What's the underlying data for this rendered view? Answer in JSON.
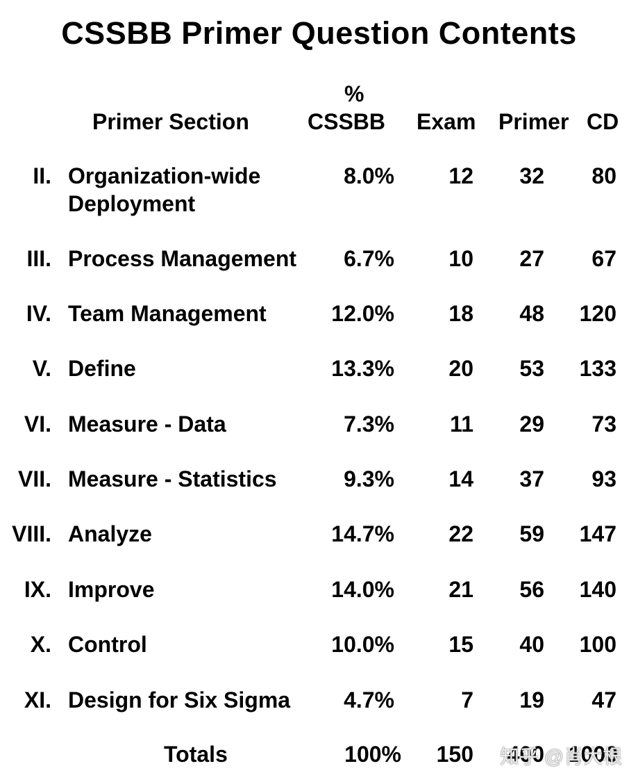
{
  "title": "CSSBB Primer Question Contents",
  "headers": {
    "section": "Primer Section",
    "pct_symbol": "%",
    "pct": "CSSBB",
    "exam": "Exam",
    "primer": "Primer",
    "cd": "CD"
  },
  "rows": [
    {
      "num": "II.",
      "label": "Organization-wide",
      "label2": "Deployment",
      "pct": "8.0%",
      "exam": "12",
      "primer": "32",
      "cd": "80"
    },
    {
      "num": "III.",
      "label": "Process Management",
      "pct": "6.7%",
      "exam": "10",
      "primer": "27",
      "cd": "67"
    },
    {
      "num": "IV.",
      "label": "Team Management",
      "pct": "12.0%",
      "exam": "18",
      "primer": "48",
      "cd": "120"
    },
    {
      "num": "V.",
      "label": "Define",
      "pct": "13.3%",
      "exam": "20",
      "primer": "53",
      "cd": "133"
    },
    {
      "num": "VI.",
      "label": "Measure - Data",
      "pct": "7.3%",
      "exam": "11",
      "primer": "29",
      "cd": "73"
    },
    {
      "num": "VII.",
      "label": "Measure - Statistics",
      "pct": "9.3%",
      "exam": "14",
      "primer": "37",
      "cd": "93"
    },
    {
      "num": "VIII.",
      "label": "Analyze",
      "pct": "14.7%",
      "exam": "22",
      "primer": "59",
      "cd": "147"
    },
    {
      "num": "IX.",
      "label": "Improve",
      "pct": "14.0%",
      "exam": "21",
      "primer": "56",
      "cd": "140"
    },
    {
      "num": "X.",
      "label": "Control",
      "pct": "10.0%",
      "exam": "15",
      "primer": "40",
      "cd": "100"
    },
    {
      "num": "XI.",
      "label": "Design for Six Sigma",
      "pct": "4.7%",
      "exam": "7",
      "primer": "19",
      "cd": "47"
    }
  ],
  "totals": {
    "label": "Totals",
    "pct": "100%",
    "exam": "150",
    "primer": "400",
    "cd": "1000"
  },
  "watermark": "知乎 @肖大根"
}
